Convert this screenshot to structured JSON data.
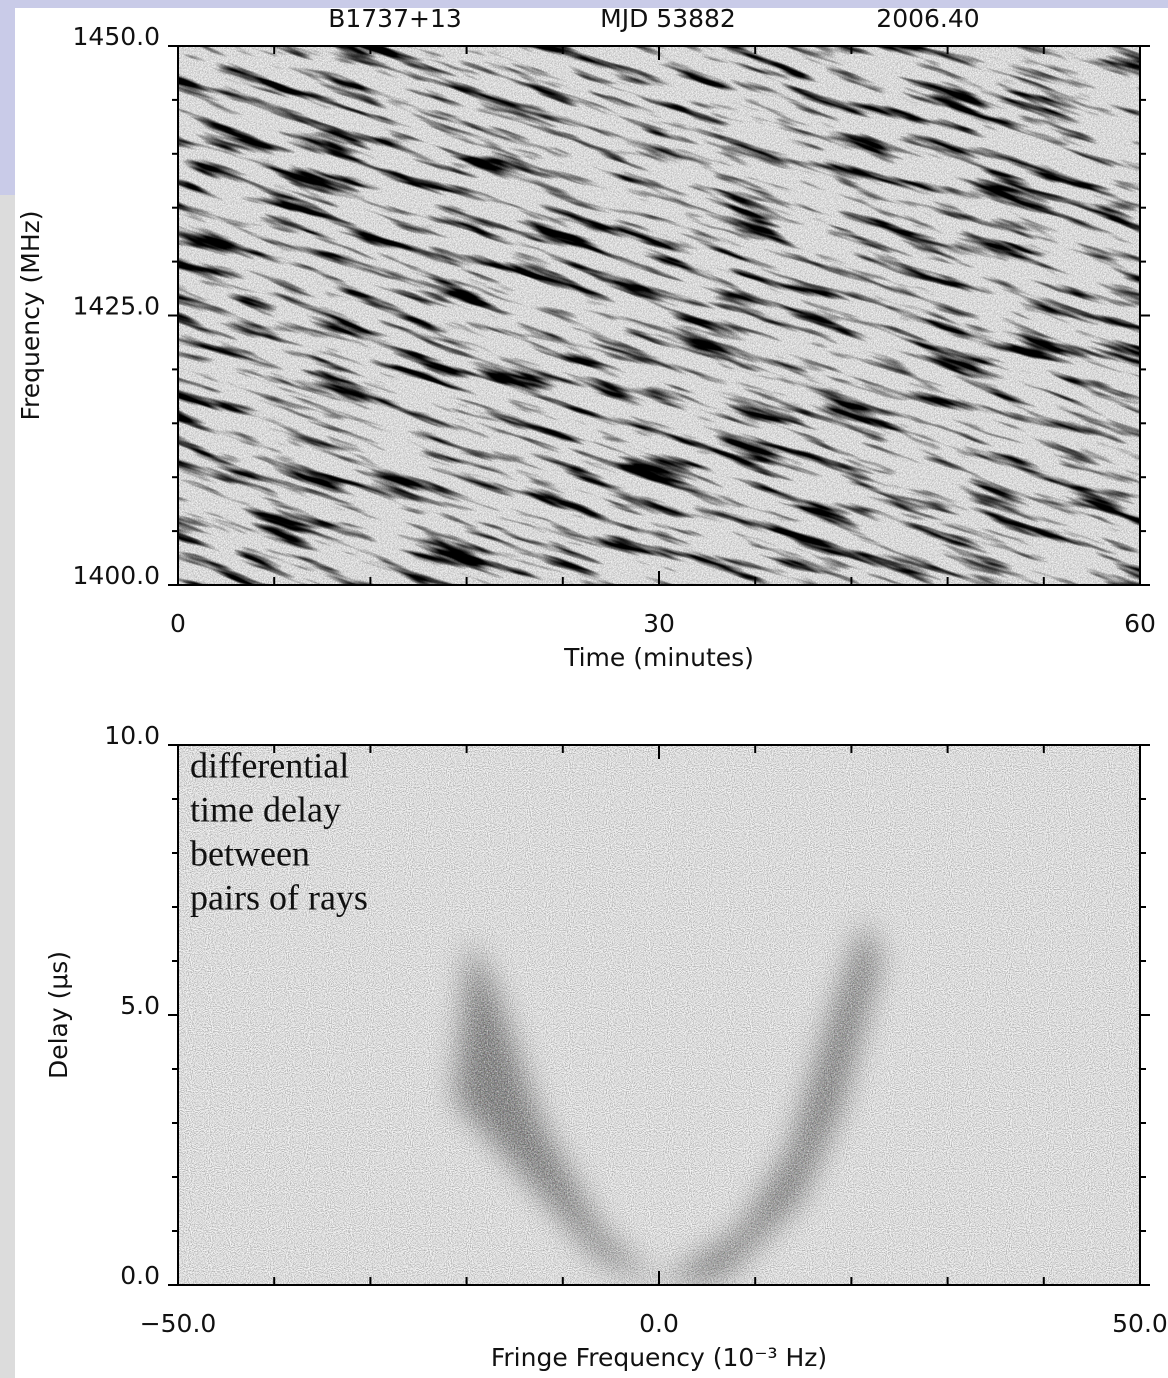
{
  "chart_data": [
    {
      "type": "image",
      "title_parts": [
        "B1737+13",
        "MJD 53882",
        "2006.40"
      ],
      "xlabel": "Time (minutes)",
      "ylabel": "Frequency (MHz)",
      "xlim": [
        0,
        60
      ],
      "xticks": [
        0,
        30,
        60
      ],
      "xminorticks": [
        6,
        12,
        18,
        24,
        36,
        42,
        48,
        54
      ],
      "ylim": [
        1400,
        1450
      ],
      "yticks": [
        {
          "value": 1400,
          "label": "1400.0"
        },
        {
          "value": 1425,
          "label": "1425.0"
        },
        {
          "value": 1450,
          "label": "1450.0"
        }
      ],
      "yminorticks": [
        1405,
        1410,
        1415,
        1420,
        1430,
        1435,
        1440,
        1445
      ]
    },
    {
      "type": "image",
      "annotation": [
        "differential",
        "time delay",
        "between",
        "pairs of rays"
      ],
      "xlabel": "Fringe Frequency (10⁻³ Hz)",
      "ylabel": "Delay (μs)",
      "xlim": [
        -50,
        50
      ],
      "xticks": [
        {
          "value": -50,
          "label": "−50.0"
        },
        {
          "value": 0,
          "label": "0.0"
        },
        {
          "value": 50,
          "label": "50.0"
        }
      ],
      "xminorticks": [
        -40,
        -30,
        -20,
        -10,
        10,
        20,
        30,
        40
      ],
      "ylim": [
        0,
        10
      ],
      "yticks": [
        {
          "value": 0,
          "label": "0.0"
        },
        {
          "value": 5,
          "label": "5.0"
        },
        {
          "value": 10,
          "label": "10.0"
        }
      ],
      "yminorticks": [
        1,
        2,
        3,
        4,
        6,
        7,
        8,
        9
      ]
    }
  ]
}
